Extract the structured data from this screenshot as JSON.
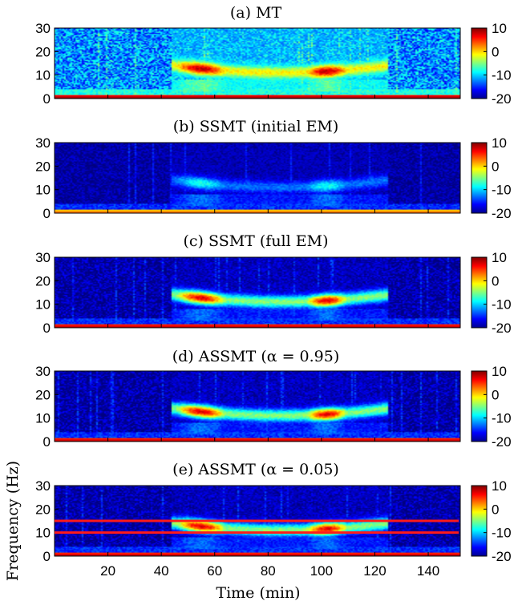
{
  "chart_data": {
    "type": "heatmap",
    "xlabel": "Time (min)",
    "ylabel": "Frequency (Hz)",
    "xlim": [
      0,
      152
    ],
    "x_ticks": [
      20,
      40,
      60,
      80,
      100,
      120,
      140
    ],
    "x_tick_labels": [
      "20",
      "40",
      "60",
      "80",
      "100",
      "120",
      "140"
    ],
    "colormap": "jet",
    "panels": [
      {
        "title": "(a) MT",
        "ylim": [
          0,
          30
        ],
        "y_ticks": [
          0,
          10,
          20,
          30
        ],
        "y_tick_labels": [
          "0",
          "10",
          "20",
          "30"
        ],
        "colorbar": {
          "range": [
            -20,
            10
          ],
          "ticks": [
            10,
            0,
            -10,
            -20
          ],
          "tick_labels": [
            "10",
            "0",
            "-10",
            "-20"
          ]
        },
        "features": {
          "background": -12,
          "noise": 5,
          "alpha_band": [
            8,
            15
          ],
          "alpha_level": 8,
          "low_freq_level": 10
        }
      },
      {
        "title": "(b) SSMT (initial EM)",
        "ylim": [
          0,
          30
        ],
        "y_ticks": [
          0,
          10,
          20,
          30
        ],
        "y_tick_labels": [
          "0",
          "10",
          "20",
          "30"
        ],
        "colorbar": {
          "range": [
            -20,
            10
          ],
          "ticks": [
            10,
            0,
            -10,
            -20
          ],
          "tick_labels": [
            "10",
            "0",
            "-10",
            "-20"
          ]
        },
        "features": {
          "background": -19,
          "noise": 2,
          "alpha_band": [
            8,
            15
          ],
          "alpha_level": -8,
          "low_freq_level": 4
        }
      },
      {
        "title": "(c) SSMT (full EM)",
        "ylim": [
          0,
          30
        ],
        "y_ticks": [
          0,
          10,
          20,
          30
        ],
        "y_tick_labels": [
          "0",
          "10",
          "20",
          "30"
        ],
        "colorbar": {
          "range": [
            -20,
            10
          ],
          "ticks": [
            10,
            0,
            -10,
            -20
          ],
          "tick_labels": [
            "10",
            "0",
            "-10",
            "-20"
          ]
        },
        "features": {
          "background": -19,
          "noise": 3,
          "alpha_band": [
            8,
            15
          ],
          "alpha_level": 7,
          "low_freq_level": 9
        }
      },
      {
        "title": "(d) ASSMT (α = 0.95)",
        "ylim": [
          0,
          30
        ],
        "y_ticks": [
          0,
          10,
          20,
          30
        ],
        "y_tick_labels": [
          "0",
          "10",
          "20",
          "30"
        ],
        "colorbar": {
          "range": [
            -20,
            10
          ],
          "ticks": [
            10,
            0,
            -10,
            -20
          ],
          "tick_labels": [
            "10",
            "0",
            "-10",
            "-20"
          ]
        },
        "features": {
          "background": -19,
          "noise": 3,
          "alpha_band": [
            8,
            15
          ],
          "alpha_level": 7,
          "low_freq_level": 9
        }
      },
      {
        "title": "(e) ASSMT (α = 0.05)",
        "ylim": [
          0,
          30
        ],
        "y_ticks": [
          0,
          10,
          20,
          30
        ],
        "y_tick_labels": [
          "0",
          "10",
          "20",
          "30"
        ],
        "colorbar": {
          "range": [
            -20,
            10
          ],
          "ticks": [
            10,
            0,
            -10,
            -20
          ],
          "tick_labels": [
            "10",
            "0",
            "-10",
            "-20"
          ]
        },
        "features": {
          "background": -19,
          "noise": 3,
          "alpha_band": [
            8,
            15
          ],
          "alpha_level": 7,
          "low_freq_level": 9
        },
        "reference_lines": {
          "y": [
            10,
            15
          ],
          "color": "#ff1a1a"
        }
      }
    ]
  }
}
